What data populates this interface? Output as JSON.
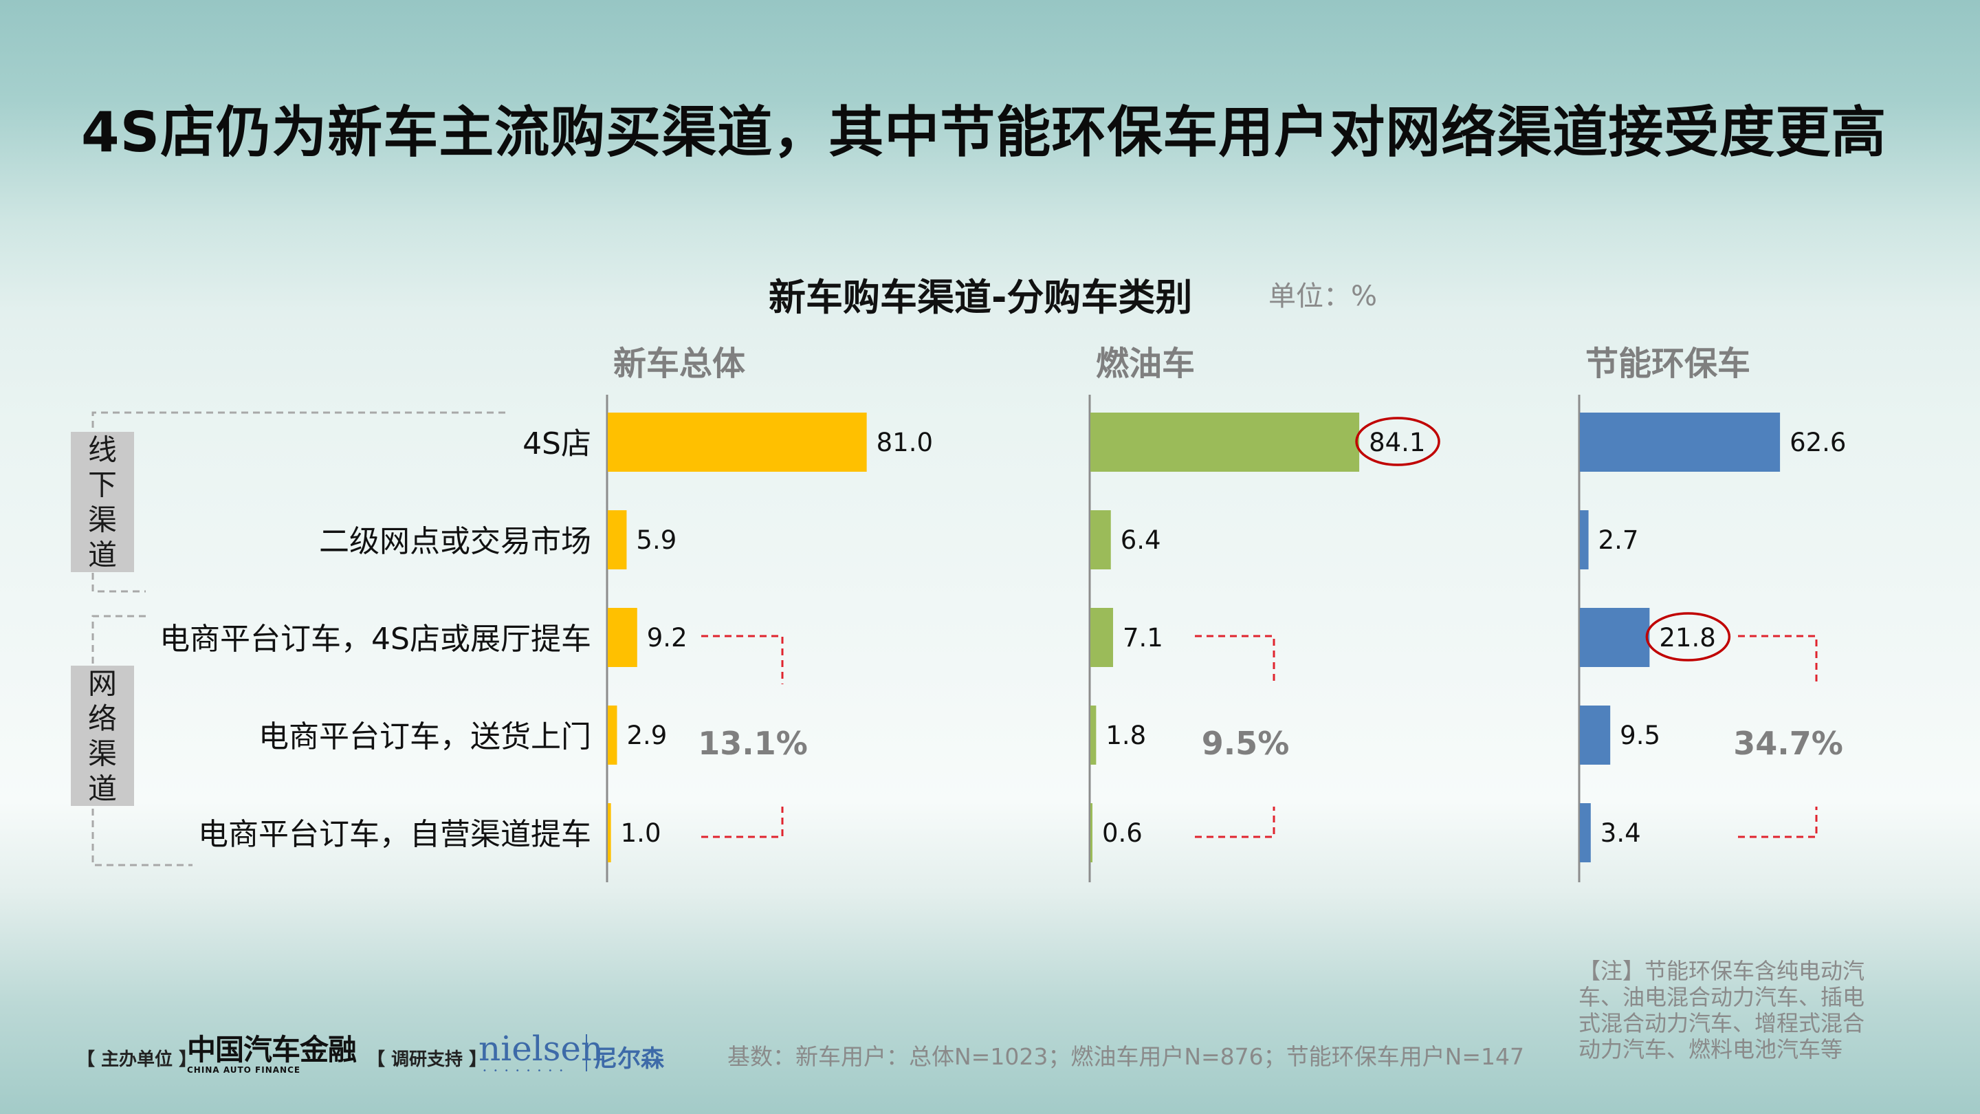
{
  "title": "4S店仍为新车主流购买渠道，其中节能环保车用户对网络渠道接受度更高",
  "chart_title": "新车购车渠道-分购车类别",
  "unit": "单位：%",
  "group_labels": {
    "offline": "线下渠道",
    "online": "网络渠道"
  },
  "colors": {
    "total": "#ffc000",
    "fuel": "#9bbb59",
    "green": "#4f81bd",
    "highlight": "#c00000",
    "bracket": "#e0242e"
  },
  "chart_data": {
    "type": "bar",
    "orientation": "horizontal",
    "categories": [
      "4S店",
      "二级网点或交易市场",
      "电商平台订车，4S店或展厅提车",
      "电商平台订车，送货上门",
      "电商平台订车，自营渠道提车"
    ],
    "series": [
      {
        "name": "新车总体",
        "values": [
          81.0,
          5.9,
          9.2,
          2.9,
          1.0
        ],
        "value_labels": [
          "81.0",
          "5.9",
          "9.2",
          "2.9",
          "1.0"
        ],
        "online_total": "13.1%",
        "highlight_index": null
      },
      {
        "name": "燃油车",
        "values": [
          84.1,
          6.4,
          7.1,
          1.8,
          0.6
        ],
        "value_labels": [
          "84.1",
          "6.4",
          "7.1",
          "1.8",
          "0.6"
        ],
        "online_total": "9.5%",
        "highlight_index": 0
      },
      {
        "name": "节能环保车",
        "values": [
          62.6,
          2.7,
          21.8,
          9.5,
          3.4
        ],
        "value_labels": [
          "62.6",
          "2.7",
          "21.8",
          "9.5",
          "3.4"
        ],
        "online_total": "34.7%",
        "highlight_index": 2
      }
    ],
    "xlim": [
      0,
      100
    ]
  },
  "note": "【注】节能环保车含纯电动汽车、油电混合动力汽车、插电式混合动力汽车、增程式混合动力汽车、燃料电池汽车等",
  "base": "基数：新车用户：总体N=1023；燃油车用户N=876；节能环保车用户N=147",
  "footer": {
    "host_label": "【 主办单位 】",
    "host_logo_cn": "中国汽车金融",
    "host_logo_en": "CHINA AUTO FINANCE",
    "support_label": "【 调研支持 】",
    "nielsen": "nielsen",
    "nielsen_cn": "尼尔森"
  }
}
